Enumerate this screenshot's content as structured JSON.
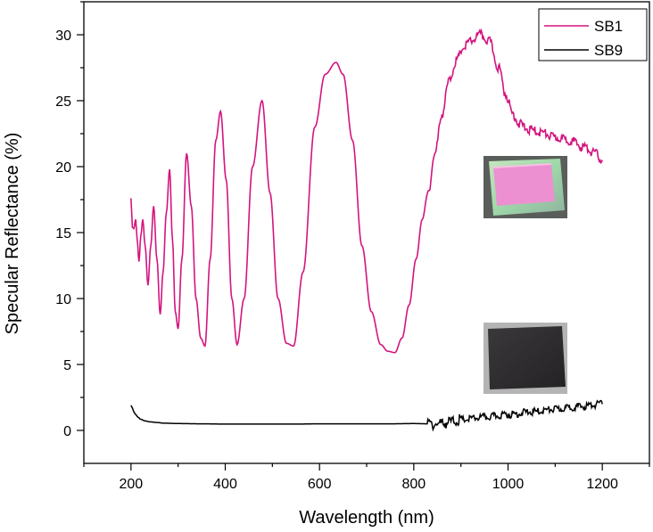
{
  "chart_data": {
    "type": "line",
    "xlabel": "Wavelength (nm)",
    "ylabel": "Specular Reflectance (%)",
    "xlim": [
      100,
      1300
    ],
    "ylim": [
      -2.5,
      32.5
    ],
    "x_ticks": [
      200,
      400,
      600,
      800,
      1000,
      1200
    ],
    "y_ticks": [
      0,
      5,
      10,
      15,
      20,
      25,
      30
    ],
    "legend_position": "top-right",
    "series": [
      {
        "name": "SB1",
        "color": "#d4147f",
        "x": [
          200,
          203,
          206,
          210,
          213,
          217,
          221,
          225,
          230,
          236,
          242,
          248,
          255,
          262,
          268,
          275,
          282,
          288,
          294,
          300,
          308,
          318,
          328,
          338,
          348,
          357,
          368,
          380,
          390,
          402,
          414,
          425,
          440,
          458,
          478,
          495,
          512,
          530,
          545,
          565,
          590,
          612,
          635,
          650,
          670,
          690,
          710,
          730,
          745,
          760,
          775,
          790,
          805,
          818,
          830,
          845,
          860,
          875,
          890,
          905,
          920,
          940,
          960,
          980,
          995,
          1010,
          1025,
          1045,
          1070,
          1100,
          1130,
          1160,
          1185,
          1200
        ],
        "y": [
          17.6,
          15.4,
          15.3,
          16.0,
          14.5,
          12.8,
          14.8,
          16.0,
          14.0,
          11.0,
          14.0,
          17.0,
          13.0,
          8.8,
          12.0,
          16.5,
          19.8,
          14.5,
          9.0,
          7.7,
          13.0,
          21.0,
          17.0,
          10.0,
          7.0,
          6.4,
          13.0,
          22.0,
          24.2,
          19.0,
          10.0,
          6.5,
          10.0,
          20.0,
          25.0,
          18.0,
          10.0,
          6.6,
          6.4,
          12.0,
          23.0,
          27.0,
          27.9,
          27.0,
          22.0,
          14.0,
          9.0,
          6.5,
          6.0,
          5.9,
          7.0,
          9.5,
          13.0,
          16.0,
          18.0,
          21.0,
          24.0,
          26.5,
          28.0,
          29.0,
          29.5,
          30.0,
          29.5,
          27.5,
          25.5,
          24.0,
          23.2,
          22.8,
          22.6,
          22.2,
          22.0,
          21.5,
          21.0,
          20.5
        ]
      },
      {
        "name": "SB9",
        "color": "#000000",
        "x": [
          200,
          203,
          206,
          210,
          215,
          220,
          230,
          240,
          255,
          270,
          300,
          350,
          400,
          450,
          500,
          550,
          600,
          650,
          700,
          750,
          800,
          830,
          850,
          870,
          900,
          950,
          1000,
          1050,
          1100,
          1150,
          1200
        ],
        "y": [
          1.9,
          1.7,
          1.4,
          1.2,
          1.0,
          0.85,
          0.72,
          0.65,
          0.6,
          0.55,
          0.52,
          0.5,
          0.48,
          0.48,
          0.48,
          0.48,
          0.5,
          0.5,
          0.5,
          0.5,
          0.52,
          0.5,
          0.5,
          0.6,
          0.8,
          1.0,
          1.2,
          1.4,
          1.6,
          1.8,
          2.0
        ]
      }
    ],
    "annotations": [
      "sample-photo-pink",
      "sample-photo-dark"
    ]
  },
  "colors": {
    "sb1": "#d4147f",
    "sb9": "#000000",
    "photo_pink": "#ec90d2",
    "photo_green_rim": "#a4dcb2",
    "photo_dark": "#2e2c2e"
  }
}
